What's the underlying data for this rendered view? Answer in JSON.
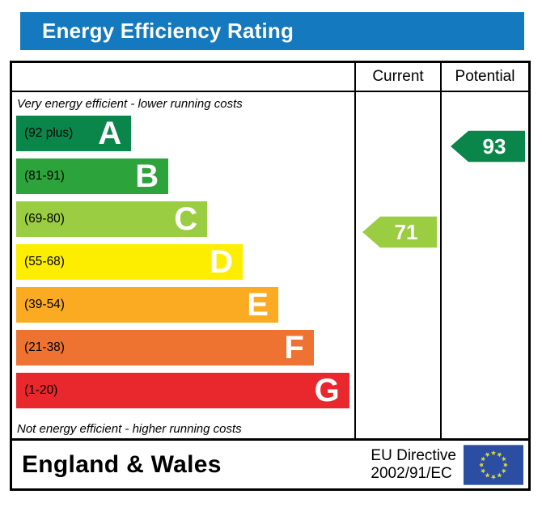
{
  "title": "Energy Efficiency Rating",
  "colors": {
    "title_bar": "#1479bf",
    "border": "#000000",
    "eu_flag_blue": "#2b4ea2",
    "eu_flag_star": "#dcd63e"
  },
  "table": {
    "columns": [
      "Current",
      "Potential"
    ],
    "top_note": "Very energy efficient - lower running costs",
    "bottom_note": "Not energy efficient - higher running costs",
    "bands": [
      {
        "letter": "A",
        "range": "(92 plus)",
        "color": "#0a864b",
        "width_pct": 34
      },
      {
        "letter": "B",
        "range": "(81-91)",
        "color": "#2da33c",
        "width_pct": 45
      },
      {
        "letter": "C",
        "range": "(69-80)",
        "color": "#9bcd42",
        "width_pct": 56.5
      },
      {
        "letter": "D",
        "range": "(55-68)",
        "color": "#fdee00",
        "width_pct": 67
      },
      {
        "letter": "E",
        "range": "(39-54)",
        "color": "#fbab21",
        "width_pct": 77.5
      },
      {
        "letter": "F",
        "range": "(21-38)",
        "color": "#ee7331",
        "width_pct": 88
      },
      {
        "letter": "G",
        "range": "(1-20)",
        "color": "#e9282d",
        "width_pct": 98.5
      }
    ],
    "current": {
      "value": "71",
      "band": "C",
      "color": "#9bcd42"
    },
    "potential": {
      "value": "93",
      "band": "A",
      "color": "#0a864b"
    }
  },
  "footer": {
    "region": "England & Wales",
    "directive_line1": "EU Directive",
    "directive_line2": "2002/91/EC"
  },
  "chart_data": {
    "type": "bar",
    "title": "Energy Efficiency Rating",
    "categories": [
      "A",
      "B",
      "C",
      "D",
      "E",
      "F",
      "G"
    ],
    "ranges": [
      "92 plus",
      "81-91",
      "69-80",
      "55-68",
      "39-54",
      "21-38",
      "1-20"
    ],
    "bar_length_pct": [
      34,
      45,
      56.5,
      67,
      77.5,
      88,
      98.5
    ],
    "values": {
      "current": 71,
      "potential": 93
    },
    "current_band": "C",
    "potential_band": "A",
    "top_annotation": "Very energy efficient - lower running costs",
    "bottom_annotation": "Not energy efficient - higher running costs",
    "region": "England & Wales",
    "directive": "EU Directive 2002/91/EC"
  }
}
